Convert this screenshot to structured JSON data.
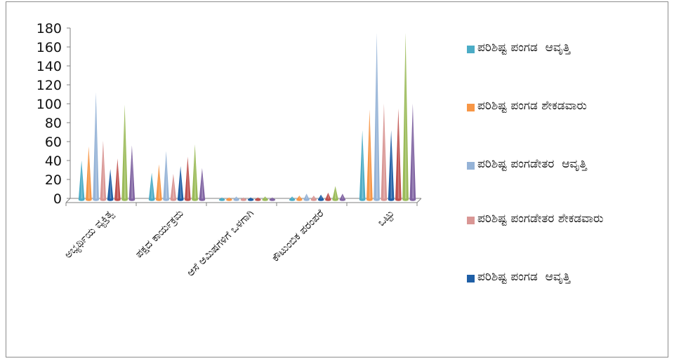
{
  "chart_data": {
    "type": "bar",
    "style": "cone",
    "ylim": [
      0,
      180
    ],
    "yticks": [
      0,
      20,
      40,
      60,
      80,
      100,
      120,
      140,
      160,
      180
    ],
    "grid": false,
    "legend_position": "right",
    "categories": [
      "ಅಭ್ಯರ್ಥಿಯ ವ್ಯಕ್ತಿತ್ವ",
      "ಪಕ್ಷದ ಕಾರ್ಯಕ್ರಮ",
      "ಆಸೆ ಆಮಿಷಗಳಿಗೆ ಒಳಗಾಗಿ",
      "ಕೌಟುಂಬಿಕ ಪರಂಪರೆ",
      "ಒಟ್ಟು"
    ],
    "series": [
      {
        "name": "ಪರಿಶಿಷ್ಟ ಪಂಗಡ  ಆವೃತ್ತಿ",
        "color": "#4bacc6",
        "values": [
          40,
          27,
          1,
          2,
          72
        ]
      },
      {
        "name": "ಪರಿಶಿಷ್ಟ ಪಂಗಡ ಶೇಕಡವಾರು",
        "color": "#f79646",
        "values": [
          55,
          36,
          1,
          3,
          94
        ]
      },
      {
        "name": "ಪರಿಶಿಷ್ಟ ಪಂಗಡೇತರ  ಆವೃತ್ತಿ",
        "color": "#95b3d7",
        "values": [
          112,
          50,
          2,
          5,
          175
        ]
      },
      {
        "name": "ಪರಿಶಿಷ್ಟ ಪಂಗಡೇತರ ಶೇಕಡವಾರು",
        "color": "#d99694",
        "values": [
          61,
          26,
          1,
          3,
          100
        ]
      },
      {
        "name": "ಪರಿಶಿಷ್ಟ ಪಂಗಡ  ಆವೃತ್ತಿ",
        "color": "#1f5fa6",
        "values": [
          31,
          34,
          1,
          4,
          72
        ]
      },
      {
        "name": "",
        "color": "#c0504d",
        "values": [
          42,
          44,
          1,
          6,
          95
        ]
      },
      {
        "name": "",
        "color": "#9bbb59",
        "values": [
          99,
          57,
          2,
          13,
          175
        ]
      },
      {
        "name": "",
        "color": "#8064a2",
        "values": [
          56,
          32,
          1,
          5,
          100
        ]
      }
    ]
  }
}
